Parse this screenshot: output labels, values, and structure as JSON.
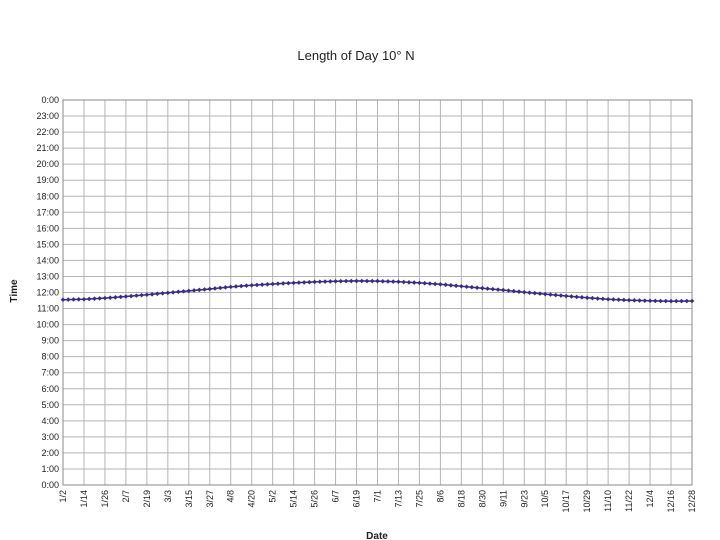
{
  "chart_data": {
    "type": "line",
    "title": "Length of Day 10° N",
    "xlabel": "Date",
    "ylabel": "Time",
    "grid": true,
    "legend": "none",
    "series_color": "#3a2a8c",
    "grid_color": "#b5b5b5",
    "y_unit": "hours",
    "ylim": [
      0,
      24
    ],
    "y_tick_labels": [
      "0:00",
      "1:00",
      "2:00",
      "3:00",
      "4:00",
      "5:00",
      "6:00",
      "7:00",
      "8:00",
      "9:00",
      "10:00",
      "11:00",
      "12:00",
      "13:00",
      "14:00",
      "15:00",
      "16:00",
      "17:00",
      "18:00",
      "19:00",
      "20:00",
      "21:00",
      "22:00",
      "23:00",
      "0:00"
    ],
    "x_tick_labels": [
      "1/2",
      "1/14",
      "1/26",
      "2/7",
      "2/19",
      "3/3",
      "3/15",
      "3/27",
      "4/8",
      "4/20",
      "5/2",
      "5/14",
      "5/26",
      "6/7",
      "6/19",
      "7/1",
      "7/13",
      "7/25",
      "8/6",
      "8/18",
      "8/30",
      "9/11",
      "9/23",
      "10/5",
      "10/17",
      "10/29",
      "11/10",
      "11/22",
      "12/4",
      "12/16",
      "12/28"
    ],
    "series": [
      {
        "x": [
          "1/2",
          "1/14",
          "1/26",
          "2/7",
          "2/19",
          "3/3",
          "3/15",
          "3/27",
          "4/8",
          "4/20",
          "5/2",
          "5/14",
          "5/26",
          "6/7",
          "6/19",
          "7/1",
          "7/13",
          "7/25",
          "8/6",
          "8/18",
          "8/30",
          "9/11",
          "9/23",
          "10/5",
          "10/17",
          "10/29",
          "11/10",
          "11/22",
          "12/4",
          "12/16",
          "12/28"
        ],
        "values": [
          11.55,
          11.58,
          11.65,
          11.75,
          11.86,
          11.98,
          12.1,
          12.22,
          12.35,
          12.45,
          12.53,
          12.6,
          12.66,
          12.7,
          12.72,
          12.71,
          12.67,
          12.6,
          12.51,
          12.39,
          12.27,
          12.15,
          12.02,
          11.9,
          11.78,
          11.67,
          11.58,
          11.52,
          11.48,
          11.46,
          11.47
        ]
      }
    ]
  }
}
